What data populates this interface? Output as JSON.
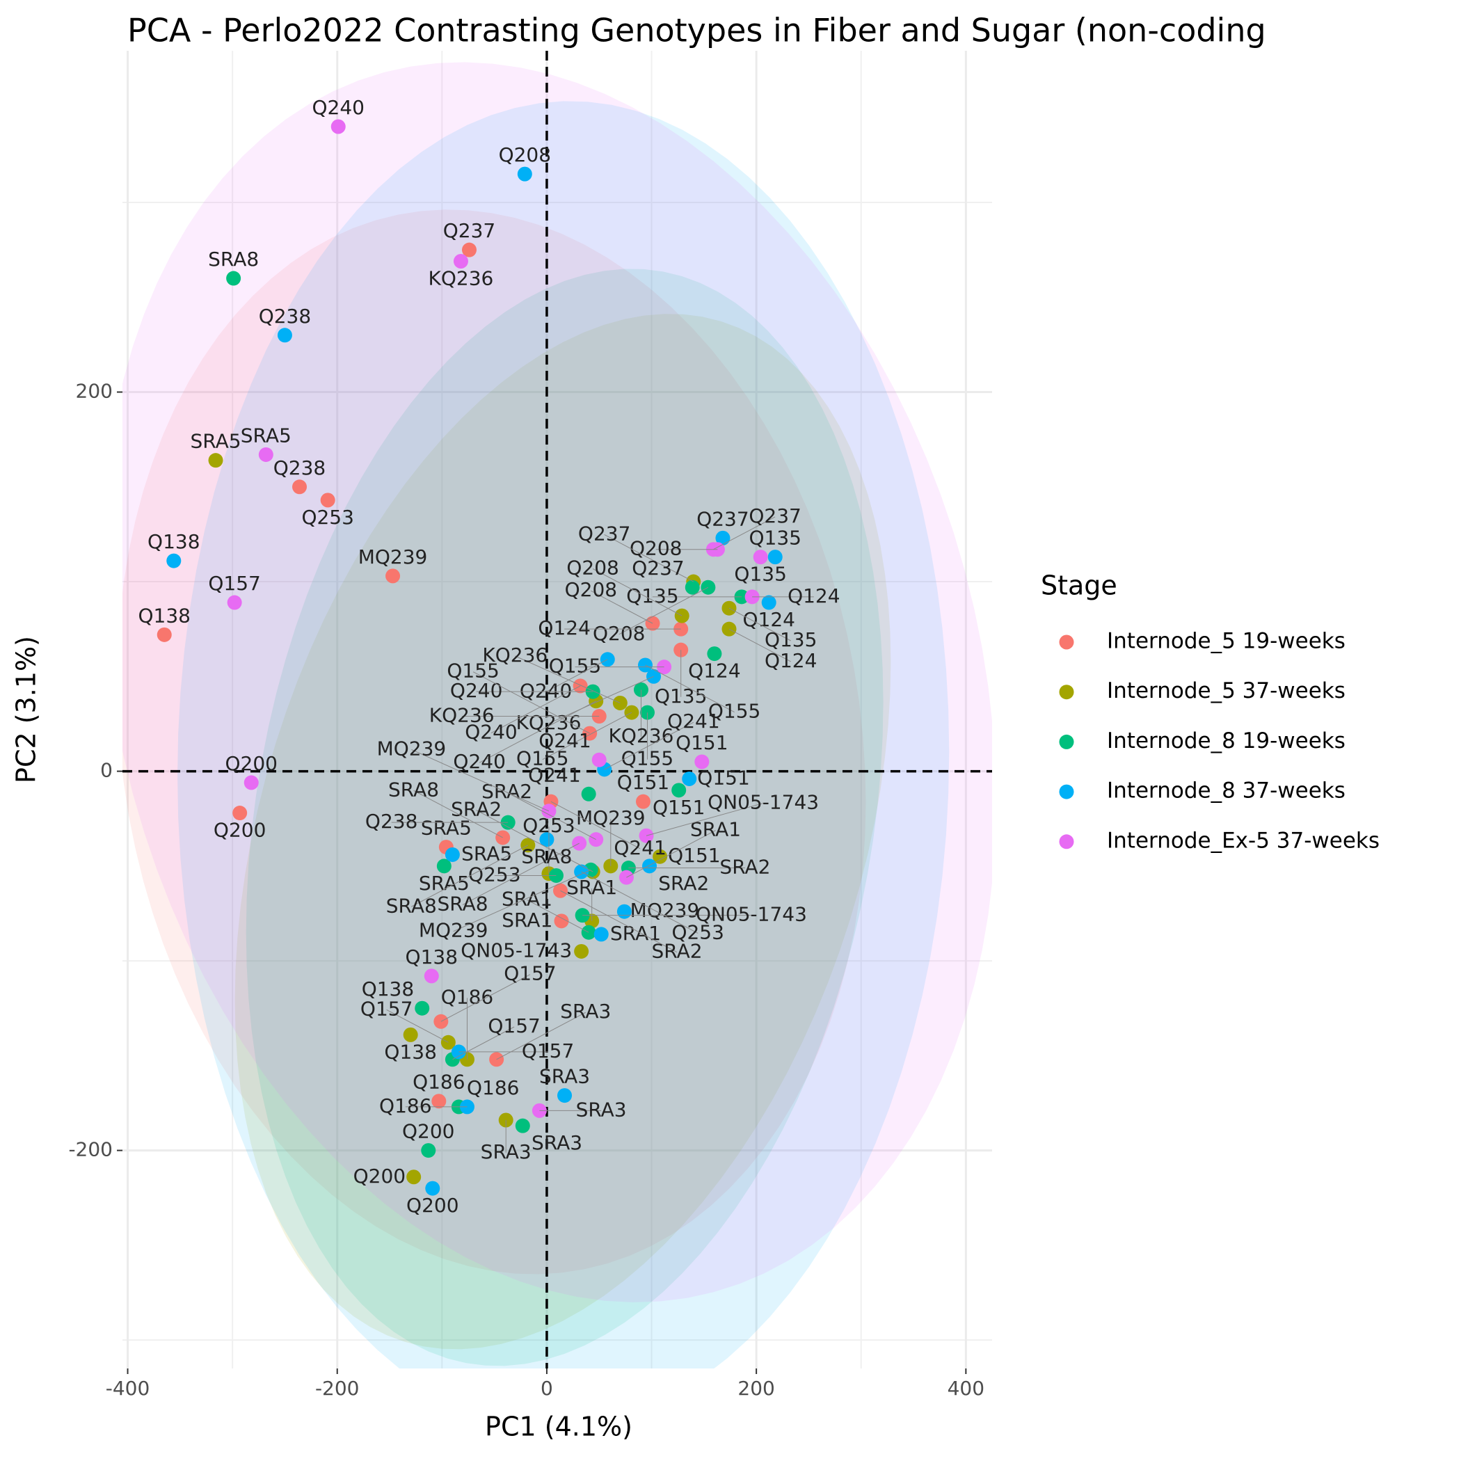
{
  "chart_data": {
    "type": "scatter",
    "title": "PCA - Perlo2022 Contrasting Genotypes in Fiber and Sugar (non-coding",
    "x_label": "PC1 (4.1%)",
    "y_label": "PC2 (3.1%)",
    "legend_title": "Stage",
    "xlim": [
      -405,
      425
    ],
    "ylim": [
      -315,
      380
    ],
    "xticks": [
      -400,
      -200,
      0,
      200,
      400
    ],
    "yticks": [
      -200,
      0,
      200
    ],
    "xminor": [
      -300,
      -100,
      100,
      300
    ],
    "yminor": [
      -300,
      -100,
      100,
      300
    ],
    "vline": 0,
    "hline": 0,
    "grid": true,
    "legend": "right",
    "ellipses": true,
    "series": [
      {
        "name": "Internode_5 19-weeks",
        "color": "#F8766D",
        "labels": [
          "Q138",
          "Q200",
          "Q238",
          "Q253",
          "MQ239",
          "Q237",
          "Q208",
          "Q124",
          "Q135",
          "Q240",
          "KQ236",
          "Q155",
          "Q241",
          "Q151",
          "SRA8",
          "SRA5",
          "SRA2",
          "SRA1",
          "Q157",
          "SRA3",
          "Q186"
        ],
        "x": [
          -365,
          -293,
          -236,
          -209,
          -147,
          -74,
          101,
          128,
          128,
          32,
          50,
          41,
          4,
          92,
          -42,
          -96,
          13,
          14,
          -101,
          -48,
          -103
        ],
        "y": [
          72,
          -22,
          150,
          143,
          103,
          275,
          78,
          75,
          64,
          45,
          29,
          20,
          -16,
          -16,
          -35,
          -40,
          -63,
          -79,
          -132,
          -152,
          -174
        ]
      },
      {
        "name": "Internode_5 37-weeks",
        "color": "#A3A500",
        "labels": [
          "SRA5",
          "Q237",
          "Q135",
          "Q208",
          "Q124",
          "Q240",
          "KQ236",
          "Q155",
          "SRA8",
          "Q151",
          "Q253",
          "SRA2",
          "MQ239",
          "SRA1",
          "QN05-1743",
          "Q138",
          "Q157",
          "Q186",
          "SRA3",
          "Q200"
        ],
        "x": [
          -316,
          140,
          174,
          129,
          174,
          47,
          70,
          81,
          -18,
          108,
          2,
          44,
          61,
          43,
          33,
          -130,
          -94,
          -76,
          -39,
          -127
        ],
        "y": [
          164,
          100,
          86,
          82,
          75,
          37,
          36,
          31,
          -39,
          -45,
          -54,
          -53,
          -50,
          -79,
          -95,
          -139,
          -143,
          -152,
          -184,
          -214
        ]
      },
      {
        "name": "Internode_8 19-weeks",
        "color": "#00BF7D",
        "labels": [
          "SRA8",
          "Q237",
          "Q208",
          "Q135",
          "Q124",
          "Q240",
          "KQ236",
          "Q155",
          "Q241",
          "Q151",
          "Q238",
          "SRA5",
          "Q253",
          "SRA2",
          "MQ239",
          "SRA1",
          "QN05-1743",
          "Q138",
          "Q157",
          "Q186",
          "SRA3",
          "Q200"
        ],
        "x": [
          -299,
          139,
          154,
          186,
          160,
          44,
          90,
          96,
          40,
          126,
          -37,
          -98,
          9,
          78,
          42,
          40,
          34,
          -119,
          -90,
          -84,
          -23,
          -113
        ],
        "y": [
          260,
          97,
          97,
          92,
          62,
          42,
          43,
          31,
          -12,
          -10,
          -27,
          -50,
          -55,
          -51,
          -52,
          -85,
          -76,
          -125,
          -152,
          -177,
          -187,
          -200
        ]
      },
      {
        "name": "Internode_8 37-weeks",
        "color": "#00B0F6",
        "labels": [
          "Q208",
          "Q238",
          "Q138",
          "Q237",
          "Q135",
          "Q124",
          "Q155",
          "Q240",
          "KQ236",
          "Q241",
          "Q151",
          "SRA8",
          "SRA5",
          "Q253",
          "SRA2",
          "MQ239",
          "SRA1",
          "Q157",
          "Q186",
          "SRA3",
          "Q200"
        ],
        "x": [
          -21,
          -250,
          -356,
          168,
          218,
          212,
          94,
          58,
          102,
          55,
          136,
          0,
          -90,
          33,
          98,
          74,
          52,
          -84,
          -76,
          17,
          -109
        ],
        "y": [
          315,
          230,
          111,
          123,
          113,
          89,
          56,
          59,
          50,
          1,
          -4,
          -36,
          -44,
          -53,
          -50,
          -74,
          -86,
          -148,
          -177,
          -171,
          -220
        ]
      },
      {
        "name": "Internode_Ex-5 37-weeks",
        "color": "#E76BF3",
        "labels": [
          "Q240",
          "KQ236",
          "SRA5",
          "Q157",
          "Q200",
          "Q237",
          "Q208",
          "Q135",
          "Q124",
          "Q155",
          "Q241",
          "Q151",
          "MQ239",
          "SRA8",
          "SRA2",
          "QN05-1743",
          "SRA1",
          "Q138",
          "SRA3"
        ],
        "x": [
          -199,
          -82,
          -268,
          -298,
          -282,
          159,
          163,
          204,
          196,
          112,
          50,
          148,
          2,
          31,
          47,
          95,
          76,
          -110,
          -7
        ],
        "y": [
          340,
          269,
          167,
          89,
          -6,
          117,
          117,
          113,
          92,
          55,
          6,
          5,
          -21,
          -38,
          -36,
          -34,
          -56,
          -108,
          -179
        ]
      }
    ]
  }
}
